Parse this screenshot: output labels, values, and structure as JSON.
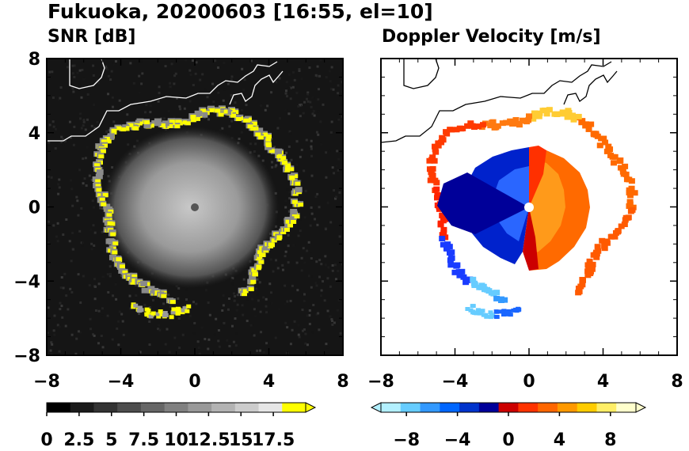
{
  "header": {
    "title": "Fukuoka, 20200603 [16:55, el=10]"
  },
  "chart_data": [
    {
      "type": "heatmap",
      "title": "SNR [dB]",
      "xlim": [
        -8,
        8
      ],
      "ylim": [
        -8,
        8
      ],
      "xticks": [
        "−8",
        "−4",
        "0",
        "4",
        "8"
      ],
      "yticks": [
        "8",
        "4",
        "0",
        "−4",
        "−8"
      ],
      "colorbar": {
        "range": [
          0,
          20
        ],
        "ticks": [
          "0",
          "2.5",
          "5",
          "7.5",
          "10",
          "12.5",
          "15",
          "17.5"
        ],
        "extend": "max",
        "colors": [
          "#000000",
          "#1a1a1a",
          "#333333",
          "#4d4d4d",
          "#666666",
          "#808080",
          "#999999",
          "#b3b3b3",
          "#cccccc",
          "#e6e6e6",
          "#ffff00"
        ]
      },
      "features": {
        "echo_ring_radius_km": 5.5,
        "radar_site": [
          0,
          0
        ],
        "coastline": true
      }
    },
    {
      "type": "heatmap",
      "title": "Doppler Velocity [m/s]",
      "xlim": [
        -8,
        8
      ],
      "ylim": [
        -8,
        8
      ],
      "xticks": [
        "−8",
        "−4",
        "0",
        "4",
        "8"
      ],
      "yticks": [],
      "colorbar": {
        "range": [
          -10,
          10
        ],
        "ticks": [
          "−8",
          "−4",
          "0",
          "4",
          "8"
        ],
        "extend": "both",
        "colors": [
          "#b3f0ff",
          "#66ccff",
          "#3399ff",
          "#0066ff",
          "#0033cc",
          "#000099",
          "#cc0000",
          "#ff3300",
          "#ff6600",
          "#ff9900",
          "#ffcc00",
          "#ffee66",
          "#ffffcc"
        ]
      },
      "features": {
        "approaching_side": "west",
        "receding_side": "east",
        "radar_site": [
          0,
          0
        ],
        "coastline": true
      }
    }
  ]
}
